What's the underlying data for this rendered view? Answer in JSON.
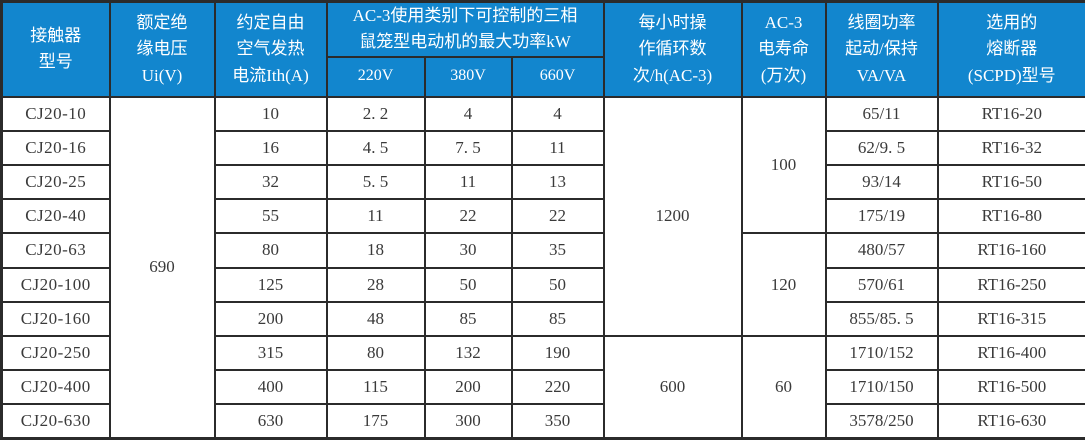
{
  "table": {
    "header": {
      "col_model": [
        "接触器",
        "型号"
      ],
      "col_ui": [
        "额定绝",
        "缘电压",
        "Ui(V)"
      ],
      "col_ith": [
        "约定自由",
        "空气发热",
        "电流Ith(A)"
      ],
      "col_ac3_power": [
        "AC-3使用类别下可控制的三相",
        "鼠笼型电动机的最大功率kW"
      ],
      "sub_voltages": [
        "220V",
        "380V",
        "660V"
      ],
      "col_cycles": [
        "每小时操",
        "作循环数",
        "次/h(AC-3)"
      ],
      "col_life": [
        "AC-3",
        "电寿命",
        "(万次)"
      ],
      "col_coil": [
        "线圈功率",
        "起动/保持",
        "VA/VA"
      ],
      "col_fuse": [
        "选用的",
        "熔断器",
        "(SCPD)型号"
      ]
    },
    "merged": {
      "ui_value": "690",
      "cycles": [
        {
          "value": "1200",
          "rows": 7
        },
        {
          "value": "600",
          "rows": 3
        }
      ],
      "life": [
        {
          "value": "100",
          "rows": 4
        },
        {
          "value": "120",
          "rows": 3
        },
        {
          "value": "60",
          "rows": 3
        }
      ]
    },
    "rows": [
      {
        "model": "CJ20-10",
        "ith": "10",
        "p220": "2. 2",
        "p380": "4",
        "p660": "4",
        "coil": "65/11",
        "fuse": "RT16-20"
      },
      {
        "model": "CJ20-16",
        "ith": "16",
        "p220": "4. 5",
        "p380": "7. 5",
        "p660": "11",
        "coil": "62/9. 5",
        "fuse": "RT16-32"
      },
      {
        "model": "CJ20-25",
        "ith": "32",
        "p220": "5. 5",
        "p380": "11",
        "p660": "13",
        "coil": "93/14",
        "fuse": "RT16-50"
      },
      {
        "model": "CJ20-40",
        "ith": "55",
        "p220": "11",
        "p380": "22",
        "p660": "22",
        "coil": "175/19",
        "fuse": "RT16-80"
      },
      {
        "model": "CJ20-63",
        "ith": "80",
        "p220": "18",
        "p380": "30",
        "p660": "35",
        "coil": "480/57",
        "fuse": "RT16-160"
      },
      {
        "model": "CJ20-100",
        "ith": "125",
        "p220": "28",
        "p380": "50",
        "p660": "50",
        "coil": "570/61",
        "fuse": "RT16-250"
      },
      {
        "model": "CJ20-160",
        "ith": "200",
        "p220": "48",
        "p380": "85",
        "p660": "85",
        "coil": "855/85. 5",
        "fuse": "RT16-315"
      },
      {
        "model": "CJ20-250",
        "ith": "315",
        "p220": "80",
        "p380": "132",
        "p660": "190",
        "coil": "1710/152",
        "fuse": "RT16-400"
      },
      {
        "model": "CJ20-400",
        "ith": "400",
        "p220": "115",
        "p380": "200",
        "p660": "220",
        "coil": "1710/150",
        "fuse": "RT16-500"
      },
      {
        "model": "CJ20-630",
        "ith": "630",
        "p220": "175",
        "p380": "300",
        "p660": "350",
        "coil": "3578/250",
        "fuse": "RT16-630"
      }
    ],
    "colors": {
      "header_bg": "#1286ce",
      "header_text": "#ffffff",
      "body_text": "#3a3a3a",
      "border": "#2b2b2b"
    }
  }
}
